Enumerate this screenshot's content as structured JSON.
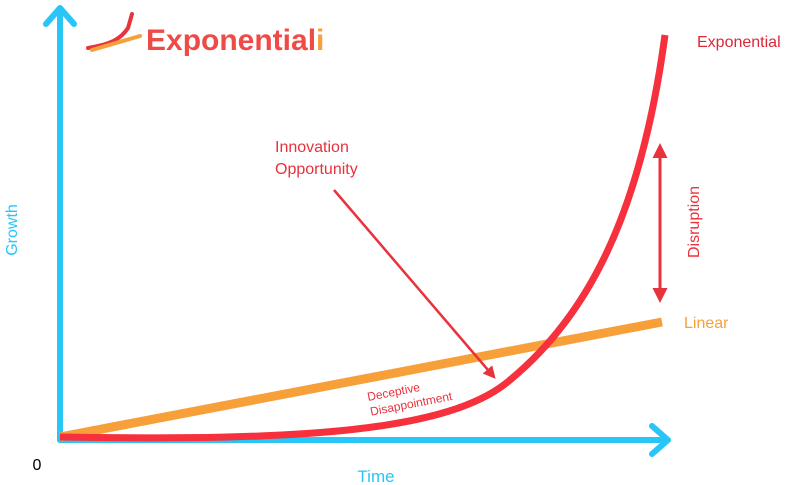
{
  "logo": {
    "main": "Exponential",
    "accent": "i"
  },
  "labels": {
    "exponential": "Exponential",
    "linear": "Linear",
    "disruption": "Disruption",
    "innovation": [
      "Innovation",
      "Opportunity"
    ],
    "deceptive": [
      "Deceptive",
      "Disappointment"
    ]
  },
  "axes": {
    "y": "Growth",
    "x": "Time",
    "origin": "0"
  }
}
